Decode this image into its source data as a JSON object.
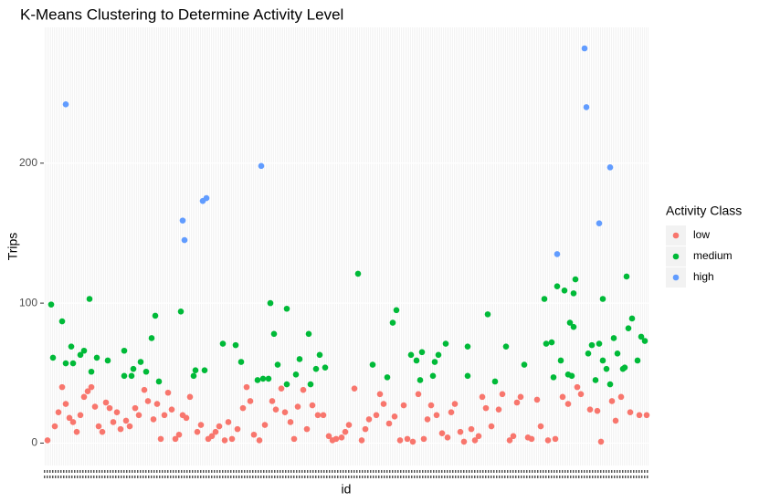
{
  "chart_data": {
    "type": "scatter",
    "title": "K-Means Clustering to Determine Activity Level",
    "x_label": "id",
    "y_label": "Trips",
    "legend_title": "Activity Class",
    "legend_position": "right",
    "grid": true,
    "xlim": [
      0,
      331
    ],
    "ylim": [
      -16,
      297
    ],
    "yticks": [
      0,
      100,
      200
    ],
    "series": [
      {
        "name": "low",
        "color": "#F8766D",
        "x": [
          2,
          6,
          8,
          10,
          12,
          14,
          16,
          18,
          20,
          22,
          24,
          26,
          28,
          30,
          32,
          34,
          36,
          38,
          40,
          42,
          45,
          47,
          50,
          52,
          55,
          57,
          60,
          62,
          64,
          66,
          68,
          70,
          72,
          74,
          76,
          78,
          80,
          84,
          86,
          90,
          92,
          94,
          96,
          99,
          101,
          103,
          106,
          109,
          111,
          113,
          115,
          118,
          121,
          125,
          127,
          130,
          132,
          135,
          137,
          139,
          142,
          144,
          147,
          150,
          153,
          156,
          158,
          160,
          163,
          165,
          167,
          170,
          174,
          176,
          178,
          182,
          184,
          186,
          189,
          192,
          195,
          197,
          199,
          202,
          205,
          208,
          210,
          212,
          215,
          218,
          221,
          223,
          225,
          228,
          230,
          234,
          236,
          238,
          240,
          242,
          245,
          249,
          251,
          255,
          257,
          259,
          261,
          265,
          267,
          270,
          272,
          276,
          280,
          284,
          287,
          292,
          294,
          299,
          303,
          305,
          311,
          313,
          316,
          321,
          326,
          330
        ],
        "values": [
          2,
          12,
          22,
          40,
          28,
          18,
          15,
          8,
          20,
          33,
          37,
          40,
          26,
          12,
          8,
          29,
          25,
          15,
          22,
          10,
          16,
          12,
          25,
          20,
          38,
          30,
          17,
          28,
          3,
          20,
          36,
          24,
          3,
          6,
          20,
          18,
          33,
          8,
          13,
          3,
          5,
          8,
          12,
          2,
          15,
          3,
          10,
          25,
          40,
          30,
          6,
          2,
          13,
          30,
          24,
          39,
          22,
          15,
          3,
          26,
          38,
          10,
          27,
          20,
          20,
          5,
          2,
          3,
          4,
          8,
          13,
          39,
          2,
          10,
          17,
          20,
          35,
          28,
          14,
          19,
          2,
          27,
          3,
          1,
          35,
          3,
          17,
          27,
          20,
          7,
          4,
          22,
          28,
          8,
          1,
          10,
          2,
          5,
          33,
          25,
          12,
          24,
          35,
          2,
          5,
          29,
          33,
          4,
          3,
          31,
          12,
          2,
          3,
          33,
          28,
          40,
          35,
          24,
          23,
          1,
          30,
          16,
          33,
          22,
          20,
          20
        ]
      },
      {
        "name": "medium",
        "color": "#00BA38",
        "x": [
          4,
          5,
          10,
          12,
          15,
          16,
          20,
          22,
          25,
          26,
          29,
          35,
          44,
          44,
          48,
          49,
          53,
          56,
          59,
          61,
          63,
          75,
          82,
          83,
          88,
          98,
          105,
          108,
          117,
          120,
          123,
          124,
          126,
          128,
          133,
          133,
          138,
          140,
          145,
          146,
          149,
          151,
          154,
          172,
          180,
          188,
          191,
          193,
          201,
          204,
          207,
          206,
          213,
          214,
          216,
          220,
          232,
          232,
          243,
          247,
          253,
          263,
          274,
          275,
          278,
          279,
          281,
          283,
          285,
          287,
          288,
          289,
          290,
          290,
          291,
          298,
          300,
          302,
          304,
          306,
          306,
          308,
          310,
          312,
          314,
          317,
          318,
          319,
          320,
          322,
          325,
          327,
          329
        ],
        "values": [
          99,
          61,
          87,
          57,
          69,
          57,
          63,
          66,
          103,
          51,
          61,
          59,
          66,
          48,
          48,
          53,
          58,
          51,
          75,
          91,
          44,
          94,
          48,
          52,
          52,
          71,
          70,
          58,
          45,
          46,
          46,
          100,
          78,
          56,
          96,
          42,
          49,
          60,
          78,
          42,
          53,
          63,
          54,
          121,
          56,
          47,
          86,
          95,
          63,
          59,
          65,
          45,
          48,
          58,
          63,
          71,
          48,
          69,
          92,
          44,
          69,
          56,
          103,
          71,
          72,
          47,
          112,
          59,
          109,
          49,
          86,
          48,
          83,
          107,
          117,
          64,
          70,
          45,
          71,
          103,
          59,
          53,
          42,
          75,
          64,
          53,
          54,
          119,
          82,
          89,
          59,
          76,
          73
        ]
      },
      {
        "name": "high",
        "color": "#619CFF",
        "x": [
          12,
          76,
          77,
          87,
          89,
          119,
          281,
          296,
          297,
          304,
          310
        ],
        "values": [
          242,
          159,
          145,
          173,
          175,
          198,
          135,
          282,
          240,
          157,
          197
        ]
      }
    ]
  }
}
